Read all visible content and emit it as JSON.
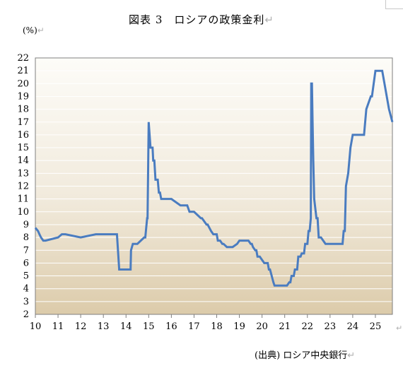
{
  "header": {
    "title": "図表 3　ロシアの政策金利",
    "unit": "(%)"
  },
  "footer": {
    "source": "(出典) ロシア中央銀行"
  },
  "colors": {
    "line": "#4a7cc0",
    "plot_top": "#fdfcf8",
    "plot_bottom": "#dccbaa",
    "frame": "#7f7f7f",
    "edit_mark": "#b0b0b0"
  },
  "chart_data": {
    "type": "line",
    "title": "図表 3　ロシアの政策金利",
    "xlabel": "",
    "ylabel": "(%)",
    "xlim": [
      10,
      25.75
    ],
    "ylim": [
      2,
      22
    ],
    "x_ticks": [
      "10",
      "11",
      "12",
      "13",
      "14",
      "15",
      "16",
      "17",
      "18",
      "19",
      "20",
      "21",
      "22",
      "23",
      "24",
      "25"
    ],
    "y_ticks": [
      "2",
      "3",
      "4",
      "5",
      "6",
      "7",
      "8",
      "9",
      "10",
      "11",
      "12",
      "13",
      "14",
      "15",
      "16",
      "17",
      "18",
      "19",
      "20",
      "21",
      "22"
    ],
    "grid": true,
    "legend": "none",
    "series": [
      {
        "name": "",
        "x": [
          10.0,
          10.12,
          10.18,
          10.25,
          10.35,
          10.45,
          11.0,
          11.17,
          11.3,
          11.33,
          12.0,
          12.67,
          13.0,
          13.6,
          13.7,
          13.75,
          14.2,
          14.22,
          14.3,
          14.5,
          14.8,
          14.85,
          14.93,
          14.95,
          15.0,
          15.08,
          15.17,
          15.2,
          15.25,
          15.3,
          15.4,
          15.45,
          15.5,
          15.55,
          15.6,
          15.7,
          16.0,
          16.4,
          16.45,
          16.5,
          16.7,
          16.8,
          17.0,
          17.3,
          17.35,
          17.45,
          17.55,
          17.6,
          17.75,
          17.85,
          18.0,
          18.05,
          18.15,
          18.25,
          18.3,
          18.45,
          18.5,
          18.7,
          18.9,
          19.0,
          19.1,
          19.2,
          19.4,
          19.5,
          19.55,
          19.6,
          19.7,
          19.75,
          19.8,
          19.9,
          20.0,
          20.1,
          20.25,
          20.3,
          20.35,
          20.5,
          20.55,
          20.7,
          20.9,
          21.0,
          21.1,
          21.2,
          21.25,
          21.3,
          21.4,
          21.45,
          21.55,
          21.6,
          21.7,
          21.75,
          21.85,
          21.9,
          22.0,
          22.05,
          22.1,
          22.15,
          22.17,
          22.2,
          22.23,
          22.26,
          22.3,
          22.4,
          22.45,
          22.5,
          22.6,
          22.8,
          23.5,
          23.55,
          23.6,
          23.65,
          23.7,
          23.8,
          23.9,
          24.0,
          24.5,
          24.6,
          24.8,
          24.85,
          25.0,
          25.3,
          25.4,
          25.6,
          25.75
        ],
        "y": [
          8.75,
          8.5,
          8.25,
          8.0,
          7.75,
          7.75,
          8.0,
          8.25,
          8.25,
          8.25,
          8.0,
          8.25,
          8.25,
          8.25,
          5.5,
          5.5,
          5.5,
          7.0,
          7.5,
          7.5,
          8.0,
          8.0,
          9.5,
          9.5,
          17.0,
          15.0,
          15.0,
          14.0,
          14.0,
          12.5,
          12.5,
          11.5,
          11.5,
          11.0,
          11.0,
          11.0,
          11.0,
          10.5,
          10.5,
          10.5,
          10.5,
          10.0,
          10.0,
          9.5,
          9.5,
          9.25,
          9.0,
          9.0,
          8.5,
          8.25,
          8.25,
          7.75,
          7.75,
          7.5,
          7.5,
          7.25,
          7.25,
          7.25,
          7.5,
          7.75,
          7.75,
          7.75,
          7.75,
          7.5,
          7.5,
          7.25,
          7.0,
          7.0,
          6.5,
          6.5,
          6.25,
          6.0,
          6.0,
          5.5,
          5.5,
          4.5,
          4.25,
          4.25,
          4.25,
          4.25,
          4.25,
          4.5,
          4.5,
          5.0,
          5.0,
          5.5,
          5.5,
          6.5,
          6.5,
          6.75,
          6.75,
          7.5,
          7.5,
          8.5,
          8.5,
          9.5,
          20.0,
          20.0,
          17.0,
          14.0,
          11.0,
          9.5,
          9.5,
          8.0,
          8.0,
          7.5,
          7.5,
          7.5,
          8.5,
          8.5,
          12.0,
          13.0,
          15.0,
          16.0,
          16.0,
          18.0,
          19.0,
          19.0,
          21.0,
          21.0,
          20.0,
          18.0,
          17.0
        ]
      }
    ]
  }
}
